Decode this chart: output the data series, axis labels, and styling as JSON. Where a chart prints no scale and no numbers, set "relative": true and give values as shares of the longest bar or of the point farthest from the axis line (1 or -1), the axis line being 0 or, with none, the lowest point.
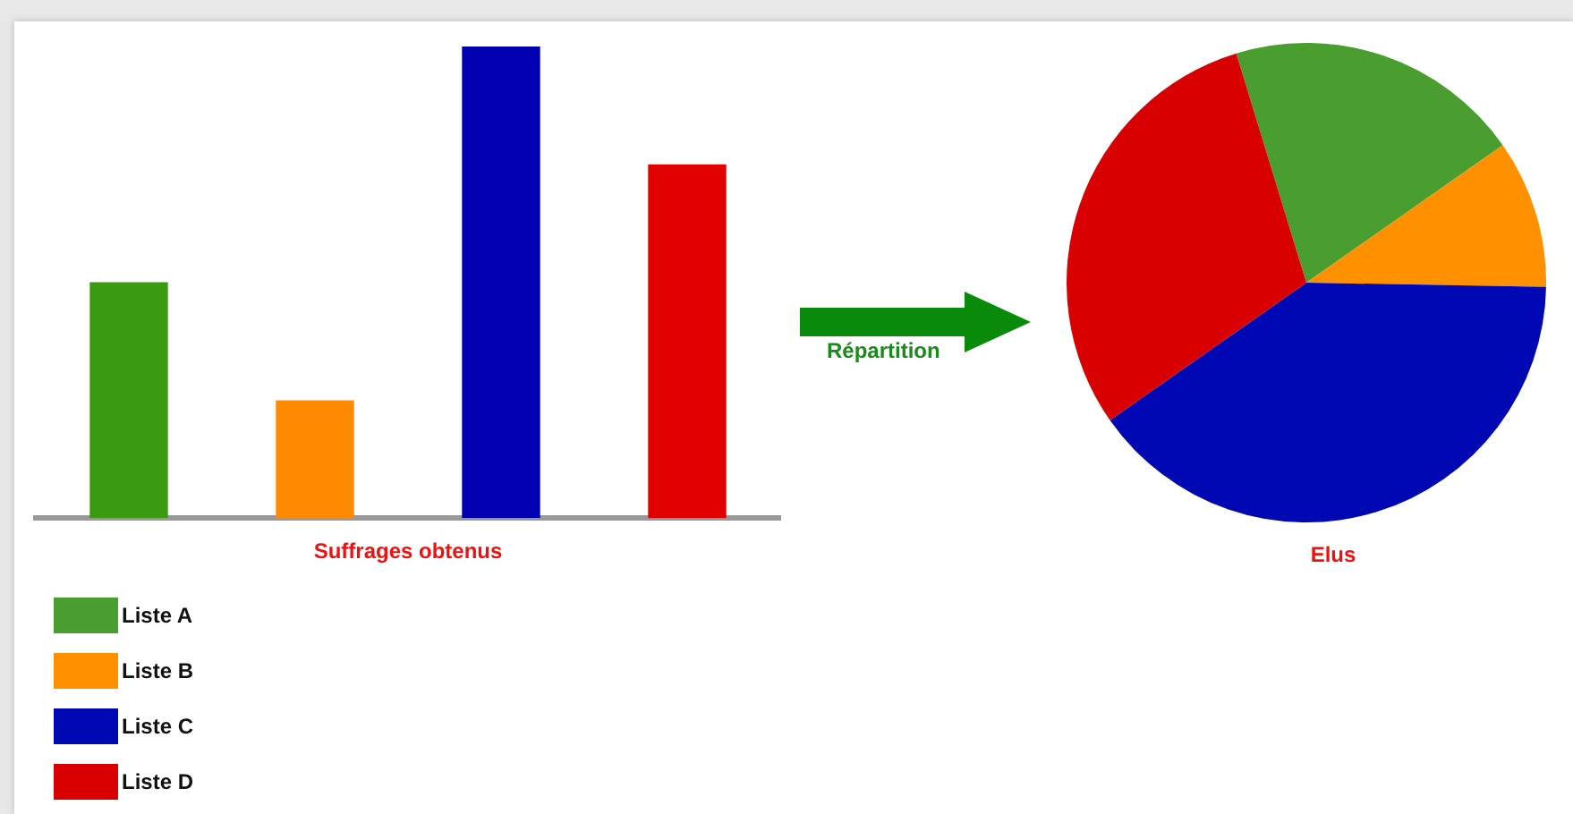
{
  "chart_data": [
    {
      "type": "bar",
      "relative": true,
      "xlabel": "Suffrages obtenus",
      "categories": [
        null,
        null,
        null,
        null
      ],
      "values": [
        0.5,
        0.25,
        1,
        0.75
      ],
      "colors": [
        "#3a9a10",
        "#ff8a00",
        "#0000b0",
        "#e00000"
      ]
    },
    {
      "type": "pie",
      "title": "Elus",
      "annotations": [
        "Répartition"
      ],
      "legend": "bottom left",
      "categories": [
        "Liste A",
        "Liste B",
        "Liste C",
        "Liste D"
      ],
      "values": [
        20,
        10,
        40,
        30
      ],
      "colors": [
        "#4a9e30",
        "#ff9000",
        "#0008b4",
        "#d80000"
      ]
    }
  ]
}
